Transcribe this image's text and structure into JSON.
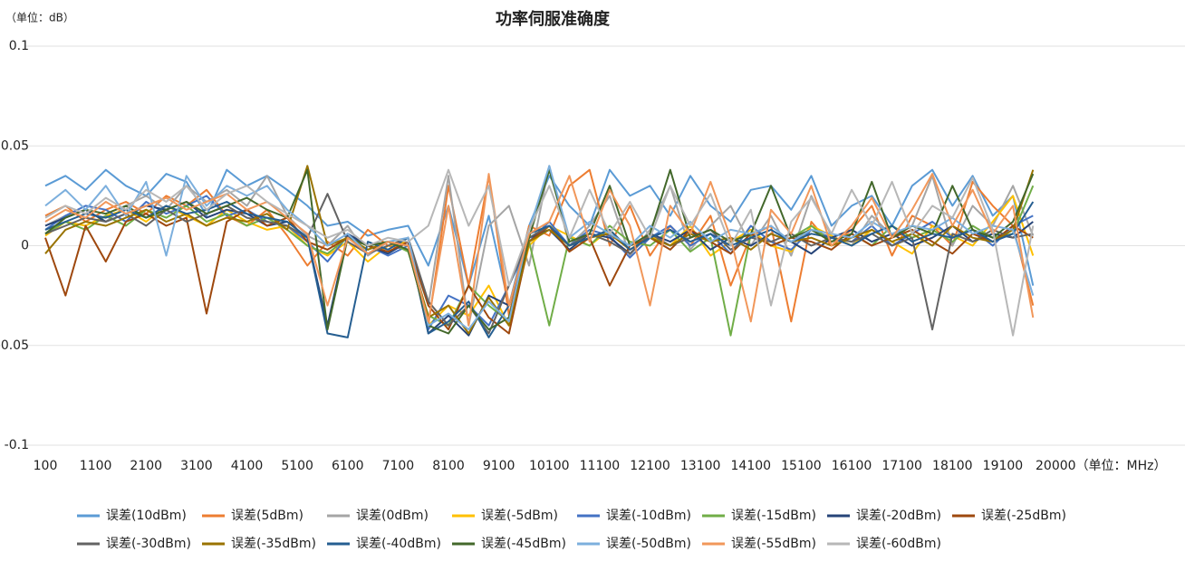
{
  "chart_data": {
    "type": "line",
    "title": "功率伺服准确度",
    "y_unit_label": "（单位：dB）",
    "x": [
      100,
      500,
      900,
      1300,
      1700,
      2100,
      2500,
      2900,
      3300,
      3700,
      4100,
      4500,
      4900,
      5300,
      5700,
      6100,
      6500,
      6900,
      7300,
      7700,
      8100,
      8500,
      8900,
      9300,
      9700,
      10100,
      10500,
      10900,
      11300,
      11700,
      12100,
      12500,
      12900,
      13300,
      13700,
      14100,
      14500,
      14900,
      15300,
      15700,
      16100,
      16500,
      16900,
      17300,
      17700,
      18100,
      18500,
      18900,
      19300,
      19700
    ],
    "xlim": [
      100,
      20000
    ],
    "xticks": [
      100,
      1100,
      2100,
      3100,
      4100,
      5100,
      6100,
      7100,
      8100,
      9100,
      10100,
      11100,
      12100,
      13100,
      14100,
      15100,
      16100,
      17100,
      18100,
      19100,
      {
        "value": 20000,
        "label": "20000（单位：MHz）"
      }
    ],
    "ylim": [
      -0.1,
      0.1
    ],
    "yticks": [
      0.1,
      0.05,
      0,
      -0.05,
      -0.1
    ],
    "grid": true,
    "series": [
      {
        "name": "误差(10dBm)",
        "color": "#5b9bd5",
        "values": [
          0.03,
          0.035,
          0.028,
          0.038,
          0.03,
          0.025,
          0.036,
          0.032,
          0.015,
          0.038,
          0.03,
          0.035,
          0.028,
          0.02,
          0.01,
          0.012,
          0.005,
          0.008,
          0.01,
          -0.01,
          0.02,
          -0.02,
          0.015,
          -0.03,
          0.01,
          0.035,
          0.02,
          0.01,
          0.038,
          0.025,
          0.03,
          0.015,
          0.035,
          0.02,
          0.012,
          0.028,
          0.03,
          0.018,
          0.035,
          0.01,
          0.02,
          0.025,
          0.01,
          0.03,
          0.038,
          0.02,
          0.035,
          0.015,
          0.025,
          -0.02
        ]
      },
      {
        "name": "误差(5dBm)",
        "color": "#ed7d31",
        "values": [
          0.015,
          0.02,
          0.012,
          0.018,
          0.022,
          0.016,
          0.025,
          0.02,
          0.028,
          0.015,
          0.01,
          0.018,
          0.005,
          -0.01,
          0.002,
          -0.005,
          0.008,
          0.0,
          -0.002,
          -0.04,
          0.03,
          -0.02,
          0.035,
          -0.035,
          0.01,
          0.005,
          0.03,
          0.038,
          0.0,
          0.02,
          -0.005,
          0.01,
          0.0,
          0.015,
          -0.02,
          0.005,
          0.01,
          -0.038,
          0.012,
          0.0,
          0.008,
          0.02,
          -0.005,
          0.015,
          0.01,
          0.0,
          0.032,
          0.02,
          0.01,
          -0.03
        ]
      },
      {
        "name": "误差(0dBm)",
        "color": "#a5a5a5",
        "values": [
          0.01,
          0.015,
          0.018,
          0.012,
          0.02,
          0.025,
          0.018,
          0.03,
          0.022,
          0.028,
          0.02,
          0.035,
          0.015,
          0.005,
          0.0,
          0.01,
          -0.005,
          0.002,
          0.0,
          -0.03,
          0.035,
          -0.04,
          0.01,
          0.02,
          -0.01,
          0.04,
          0.0,
          0.01,
          0.025,
          -0.005,
          0.008,
          0.03,
          -0.002,
          0.01,
          0.02,
          0.0,
          0.015,
          -0.005,
          0.025,
          0.005,
          0.0,
          0.015,
          0.005,
          0.01,
          0.035,
          0.0,
          0.02,
          0.01,
          0.03,
          0.005
        ]
      },
      {
        "name": "误差(-5dBm)",
        "color": "#ffc000",
        "values": [
          0.005,
          0.012,
          0.01,
          0.015,
          0.018,
          0.012,
          0.02,
          0.015,
          0.01,
          0.018,
          0.012,
          0.008,
          0.01,
          0.0,
          -0.005,
          0.002,
          -0.008,
          0.0,
          0.002,
          -0.04,
          -0.03,
          -0.035,
          -0.02,
          -0.04,
          0.0,
          0.01,
          0.005,
          0.0,
          0.008,
          -0.002,
          0.005,
          0.0,
          0.01,
          -0.005,
          0.002,
          0.008,
          0.0,
          -0.003,
          0.01,
          0.005,
          0.0,
          0.008,
          0.002,
          -0.004,
          0.01,
          0.005,
          0.0,
          0.012,
          0.025,
          -0.005
        ]
      },
      {
        "name": "误差(-10dBm)",
        "color": "#4472c4",
        "values": [
          0.008,
          0.015,
          0.02,
          0.018,
          0.012,
          0.022,
          0.016,
          0.02,
          0.025,
          0.015,
          0.018,
          0.012,
          0.01,
          0.002,
          -0.008,
          0.005,
          0.0,
          -0.005,
          0.0,
          -0.042,
          -0.025,
          -0.03,
          -0.04,
          -0.02,
          0.002,
          0.012,
          0.0,
          0.008,
          0.005,
          -0.006,
          0.004,
          0.01,
          0.0,
          0.006,
          -0.004,
          0.01,
          0.002,
          -0.002,
          0.008,
          0.004,
          0.002,
          0.01,
          0.0,
          0.006,
          0.012,
          0.004,
          0.008,
          0.0,
          0.01,
          0.015
        ]
      },
      {
        "name": "误差(-15dBm)",
        "color": "#70ad47",
        "values": [
          0.006,
          0.012,
          0.008,
          0.015,
          0.01,
          0.018,
          0.014,
          0.02,
          0.012,
          0.016,
          0.01,
          0.014,
          0.008,
          0.0,
          -0.004,
          0.004,
          -0.002,
          0.002,
          -0.003,
          -0.035,
          -0.04,
          -0.02,
          -0.03,
          -0.038,
          0.002,
          -0.04,
          0.004,
          0.0,
          0.01,
          0.002,
          0.0,
          0.008,
          -0.003,
          0.004,
          -0.045,
          0.006,
          0.0,
          0.004,
          0.01,
          0.002,
          0.006,
          0.0,
          0.01,
          0.004,
          0.008,
          0.002,
          0.01,
          0.004,
          0.006,
          0.03
        ]
      },
      {
        "name": "误差(-20dBm)",
        "color": "#264478",
        "values": [
          0.01,
          0.014,
          0.018,
          0.012,
          0.016,
          0.02,
          0.018,
          0.022,
          0.014,
          0.018,
          0.016,
          0.01,
          0.012,
          0.004,
          -0.04,
          0.006,
          0.0,
          -0.004,
          0.002,
          -0.044,
          -0.035,
          -0.045,
          -0.025,
          -0.03,
          0.004,
          0.008,
          -0.002,
          0.006,
          0.004,
          -0.004,
          0.006,
          0.002,
          0.008,
          -0.002,
          0.004,
          0.0,
          0.006,
          0.002,
          -0.004,
          0.004,
          0.008,
          0.002,
          0.006,
          0.0,
          0.004,
          0.01,
          0.002,
          0.006,
          0.004,
          0.012
        ]
      },
      {
        "name": "误差(-25dBm)",
        "color": "#9e480e",
        "values": [
          0.004,
          -0.025,
          0.01,
          -0.008,
          0.012,
          0.016,
          0.01,
          0.014,
          -0.034,
          0.012,
          0.018,
          0.01,
          0.014,
          0.002,
          -0.002,
          0.004,
          0.0,
          -0.003,
          0.002,
          -0.03,
          -0.042,
          -0.02,
          -0.036,
          -0.044,
          0.002,
          0.01,
          -0.003,
          0.004,
          -0.02,
          0.0,
          0.004,
          -0.002,
          0.008,
          0.002,
          -0.004,
          0.006,
          0.0,
          0.004,
          0.002,
          -0.002,
          0.006,
          0.0,
          0.004,
          0.008,
          0.002,
          -0.004,
          0.006,
          0.002,
          0.01,
          0.004
        ]
      },
      {
        "name": "误差(-30dBm)",
        "color": "#636363",
        "values": [
          0.006,
          0.01,
          0.014,
          0.012,
          0.016,
          0.01,
          0.018,
          0.012,
          0.016,
          0.02,
          0.014,
          0.012,
          0.01,
          0.004,
          0.026,
          0.002,
          -0.004,
          0.0,
          0.004,
          -0.028,
          -0.04,
          -0.03,
          -0.044,
          -0.02,
          0.004,
          0.01,
          0.0,
          0.006,
          0.002,
          -0.004,
          0.006,
          0.0,
          0.004,
          0.008,
          -0.002,
          0.004,
          0.002,
          0.006,
          0.0,
          0.004,
          0.002,
          0.006,
          0.0,
          0.004,
          -0.042,
          0.006,
          0.002,
          0.008,
          0.004,
          0.006
        ]
      },
      {
        "name": "误差(-35dBm)",
        "color": "#997300",
        "values": [
          -0.004,
          0.008,
          0.012,
          0.01,
          0.014,
          0.018,
          0.012,
          0.016,
          0.01,
          0.014,
          0.012,
          0.016,
          0.008,
          0.04,
          0.0,
          0.004,
          -0.002,
          0.002,
          0.0,
          -0.036,
          -0.03,
          -0.044,
          -0.026,
          -0.04,
          0.002,
          0.008,
          0.0,
          0.004,
          0.006,
          -0.002,
          0.004,
          0.0,
          0.006,
          0.002,
          0.004,
          -0.002,
          0.006,
          0.002,
          0.004,
          0.0,
          0.004,
          0.008,
          0.002,
          0.006,
          0.0,
          0.01,
          0.004,
          0.002,
          0.008,
          0.038
        ]
      },
      {
        "name": "误差(-40dBm)",
        "color": "#255e91",
        "values": [
          0.008,
          0.012,
          0.016,
          0.014,
          0.018,
          0.014,
          0.02,
          0.016,
          0.018,
          0.022,
          0.016,
          0.014,
          0.012,
          0.004,
          -0.044,
          -0.046,
          0.002,
          -0.002,
          0.004,
          -0.044,
          -0.038,
          -0.028,
          -0.046,
          -0.03,
          0.006,
          0.01,
          0.0,
          0.004,
          0.008,
          -0.002,
          0.004,
          0.008,
          0.002,
          0.006,
          0.0,
          0.004,
          0.008,
          0.002,
          0.006,
          0.004,
          0.0,
          0.006,
          0.01,
          0.002,
          0.006,
          0.004,
          0.008,
          0.002,
          0.006,
          0.022
        ]
      },
      {
        "name": "误差(-45dBm)",
        "color": "#43682b",
        "values": [
          0.006,
          0.014,
          0.018,
          0.016,
          0.02,
          0.014,
          0.018,
          0.022,
          0.016,
          0.02,
          0.024,
          0.018,
          0.014,
          0.038,
          -0.042,
          0.004,
          0.0,
          0.002,
          -0.002,
          -0.04,
          -0.044,
          -0.03,
          -0.042,
          -0.036,
          0.004,
          0.038,
          0.002,
          0.006,
          0.03,
          0.0,
          0.006,
          0.038,
          0.004,
          0.008,
          0.002,
          0.006,
          0.03,
          0.004,
          0.008,
          0.002,
          0.006,
          0.032,
          0.004,
          0.01,
          0.006,
          0.03,
          0.008,
          0.004,
          0.012,
          0.036
        ]
      },
      {
        "name": "误差(-50dBm)",
        "color": "#7cafdd",
        "values": [
          0.02,
          0.028,
          0.018,
          0.03,
          0.015,
          0.032,
          -0.005,
          0.035,
          0.02,
          0.03,
          0.025,
          0.03,
          0.018,
          0.01,
          0.0,
          0.006,
          -0.004,
          0.002,
          0.004,
          -0.04,
          -0.034,
          -0.042,
          -0.028,
          -0.038,
          0.008,
          0.04,
          0.004,
          0.012,
          0.006,
          0.0,
          0.01,
          0.004,
          0.012,
          0.002,
          0.008,
          0.006,
          0.01,
          0.002,
          0.008,
          0.006,
          0.004,
          0.012,
          0.006,
          0.01,
          0.008,
          0.014,
          0.006,
          0.01,
          0.008,
          -0.025
        ]
      },
      {
        "name": "误差(-55dBm)",
        "color": "#f1975a",
        "values": [
          0.012,
          0.018,
          0.014,
          0.022,
          0.016,
          0.02,
          0.024,
          0.018,
          0.022,
          0.026,
          0.018,
          0.022,
          0.014,
          0.006,
          -0.03,
          0.004,
          -0.004,
          0.002,
          0.0,
          -0.038,
          0.02,
          -0.04,
          0.036,
          -0.03,
          0.006,
          0.012,
          0.035,
          0.002,
          0.028,
          0.01,
          -0.03,
          0.02,
          0.006,
          0.032,
          0.004,
          -0.038,
          0.018,
          0.006,
          0.03,
          0.0,
          0.01,
          0.024,
          0.004,
          0.018,
          0.036,
          0.01,
          0.028,
          0.006,
          0.02,
          -0.036
        ]
      },
      {
        "name": "误差(-60dBm)",
        "color": "#b7b7b7",
        "values": [
          0.014,
          0.02,
          0.016,
          0.024,
          0.018,
          0.028,
          0.022,
          0.03,
          0.018,
          0.026,
          0.03,
          0.022,
          0.016,
          0.01,
          0.004,
          0.008,
          0.0,
          0.004,
          0.002,
          0.01,
          0.038,
          0.01,
          0.03,
          -0.02,
          0.008,
          0.03,
          0.004,
          0.028,
          0.006,
          0.022,
          0.004,
          0.03,
          0.01,
          0.026,
          0.0,
          0.018,
          -0.03,
          0.012,
          0.024,
          0.006,
          0.028,
          0.01,
          0.032,
          0.006,
          0.02,
          0.014,
          0.034,
          0.008,
          -0.045,
          0.01
        ]
      }
    ]
  }
}
